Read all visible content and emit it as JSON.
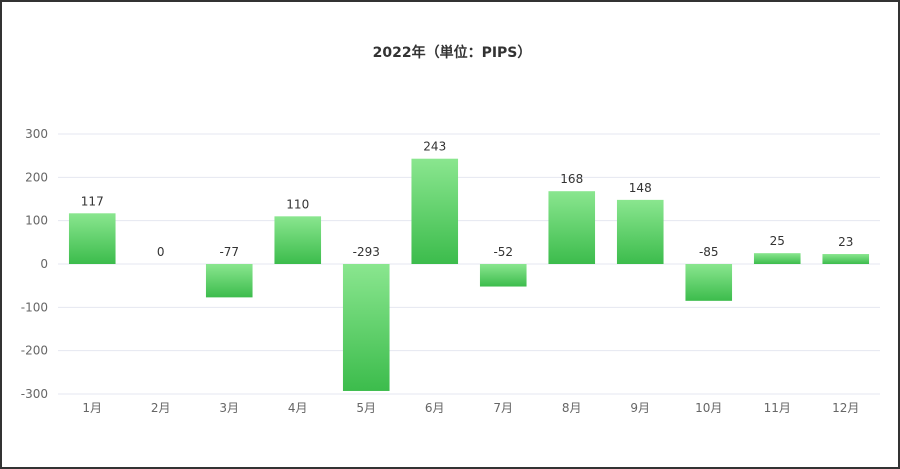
{
  "chart_data": {
    "type": "bar",
    "title": "2022年（単位：PIPS）",
    "categories": [
      "1月",
      "2月",
      "3月",
      "4月",
      "5月",
      "6月",
      "7月",
      "8月",
      "9月",
      "10月",
      "11月",
      "12月"
    ],
    "values": [
      117,
      0,
      -77,
      110,
      -293,
      243,
      -52,
      168,
      148,
      -85,
      25,
      23
    ],
    "y_ticks": [
      300,
      200,
      100,
      0,
      -100,
      -200,
      -300
    ],
    "ylim": [
      -300,
      300
    ],
    "grid": true,
    "legend": "none",
    "colors": {
      "bar_top": "#8ae68f",
      "bar_bottom": "#3cbc4c",
      "grid": "#e4e7f0",
      "axis_text": "#666666",
      "label_text": "#333333"
    }
  }
}
